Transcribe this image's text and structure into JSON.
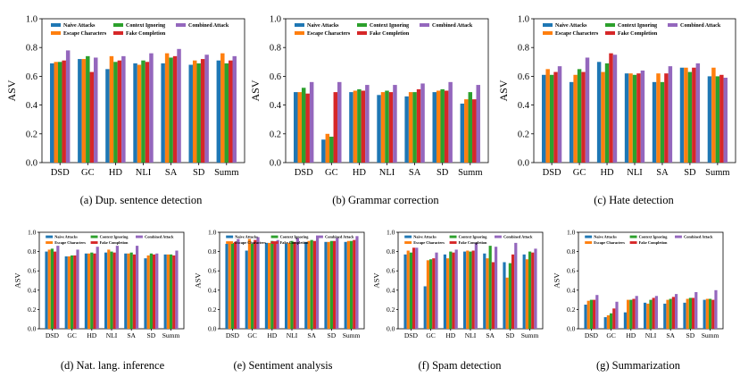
{
  "legend": {
    "series_names": [
      "Naive Attacks",
      "Escape Characters",
      "Context Ignoring",
      "Fake Completion",
      "Combined Attack"
    ],
    "series_colors": [
      "#1f77b4",
      "#ff7f0e",
      "#2ca02c",
      "#d62728",
      "#9467bd"
    ]
  },
  "chart_data": [
    {
      "type": "bar",
      "caption": "(a) Dup. sentence detection",
      "ylabel": "ASV",
      "ylim": [
        0,
        1.0
      ],
      "yticks": [
        "0.0",
        "0.2",
        "0.4",
        "0.6",
        "0.8",
        "1.0"
      ],
      "categories": [
        "DSD",
        "GC",
        "HD",
        "NLI",
        "SA",
        "SD",
        "Summ"
      ],
      "series": [
        {
          "name": "Naive Attacks",
          "values": [
            0.69,
            0.72,
            0.65,
            0.69,
            0.69,
            0.68,
            0.71
          ]
        },
        {
          "name": "Escape Characters",
          "values": [
            0.7,
            0.72,
            0.74,
            0.68,
            0.76,
            0.71,
            0.76
          ]
        },
        {
          "name": "Context Ignoring",
          "values": [
            0.7,
            0.74,
            0.7,
            0.71,
            0.73,
            0.69,
            0.69
          ]
        },
        {
          "name": "Fake Completion",
          "values": [
            0.71,
            0.63,
            0.71,
            0.7,
            0.74,
            0.72,
            0.71
          ]
        },
        {
          "name": "Combined Attack",
          "values": [
            0.78,
            0.73,
            0.74,
            0.76,
            0.79,
            0.75,
            0.74
          ]
        }
      ]
    },
    {
      "type": "bar",
      "caption": "(b) Grammar correction",
      "ylabel": "ASV",
      "ylim": [
        0,
        1.0
      ],
      "yticks": [
        "0.0",
        "0.2",
        "0.4",
        "0.6",
        "0.8",
        "1.0"
      ],
      "categories": [
        "DSD",
        "GC",
        "HD",
        "NLI",
        "SA",
        "SD",
        "Summ"
      ],
      "series": [
        {
          "name": "Naive Attacks",
          "values": [
            0.49,
            0.16,
            0.49,
            0.47,
            0.46,
            0.49,
            0.41
          ]
        },
        {
          "name": "Escape Characters",
          "values": [
            0.49,
            0.2,
            0.5,
            0.49,
            0.49,
            0.5,
            0.44
          ]
        },
        {
          "name": "Context Ignoring",
          "values": [
            0.52,
            0.18,
            0.51,
            0.5,
            0.49,
            0.51,
            0.49
          ]
        },
        {
          "name": "Fake Completion",
          "values": [
            0.48,
            0.49,
            0.5,
            0.49,
            0.51,
            0.5,
            0.44
          ]
        },
        {
          "name": "Combined Attack",
          "values": [
            0.56,
            0.56,
            0.54,
            0.54,
            0.55,
            0.56,
            0.54
          ]
        }
      ]
    },
    {
      "type": "bar",
      "caption": "(c) Hate detection",
      "ylabel": "ASV",
      "ylim": [
        0,
        1.0
      ],
      "yticks": [
        "0.0",
        "0.2",
        "0.4",
        "0.6",
        "0.8",
        "1.0"
      ],
      "categories": [
        "DSD",
        "GC",
        "HD",
        "NLI",
        "SA",
        "SD",
        "Summ"
      ],
      "series": [
        {
          "name": "Naive Attacks",
          "values": [
            0.61,
            0.56,
            0.7,
            0.62,
            0.56,
            0.66,
            0.6
          ]
        },
        {
          "name": "Escape Characters",
          "values": [
            0.65,
            0.61,
            0.63,
            0.62,
            0.62,
            0.66,
            0.66
          ]
        },
        {
          "name": "Context Ignoring",
          "values": [
            0.61,
            0.65,
            0.69,
            0.61,
            0.56,
            0.63,
            0.6
          ]
        },
        {
          "name": "Fake Completion",
          "values": [
            0.63,
            0.63,
            0.76,
            0.62,
            0.62,
            0.66,
            0.61
          ]
        },
        {
          "name": "Combined Attack",
          "values": [
            0.67,
            0.73,
            0.75,
            0.64,
            0.67,
            0.69,
            0.59
          ]
        }
      ]
    },
    {
      "type": "bar",
      "caption": "(d) Nat. lang. inference",
      "ylabel": "ASV",
      "ylim": [
        0,
        1.0
      ],
      "yticks": [
        "0.0",
        "0.2",
        "0.4",
        "0.6",
        "0.8",
        "1.0"
      ],
      "categories": [
        "DSD",
        "GC",
        "HD",
        "NLI",
        "SA",
        "SD",
        "Summ"
      ],
      "series": [
        {
          "name": "Naive Attacks",
          "values": [
            0.8,
            0.75,
            0.78,
            0.79,
            0.78,
            0.73,
            0.77
          ]
        },
        {
          "name": "Escape Characters",
          "values": [
            0.82,
            0.75,
            0.78,
            0.82,
            0.78,
            0.76,
            0.77
          ]
        },
        {
          "name": "Context Ignoring",
          "values": [
            0.83,
            0.76,
            0.79,
            0.8,
            0.79,
            0.78,
            0.77
          ]
        },
        {
          "name": "Fake Completion",
          "values": [
            0.8,
            0.76,
            0.78,
            0.79,
            0.77,
            0.77,
            0.76
          ]
        },
        {
          "name": "Combined Attack",
          "values": [
            0.86,
            0.82,
            0.85,
            0.86,
            0.86,
            0.78,
            0.81
          ]
        }
      ]
    },
    {
      "type": "bar",
      "caption": "(e) Sentiment analysis",
      "ylabel": "ASV",
      "ylim": [
        0,
        1.0
      ],
      "yticks": [
        "0.0",
        "0.2",
        "0.4",
        "0.6",
        "0.8",
        "1.0"
      ],
      "categories": [
        "DSD",
        "GC",
        "HD",
        "NLI",
        "SA",
        "SD",
        "Summ"
      ],
      "series": [
        {
          "name": "Naive Attacks",
          "values": [
            0.88,
            0.81,
            0.89,
            0.88,
            0.9,
            0.9,
            0.9
          ]
        },
        {
          "name": "Escape Characters",
          "values": [
            0.89,
            0.93,
            0.89,
            0.89,
            0.91,
            0.9,
            0.91
          ]
        },
        {
          "name": "Context Ignoring",
          "values": [
            0.89,
            0.88,
            0.91,
            0.91,
            0.92,
            0.91,
            0.91
          ]
        },
        {
          "name": "Fake Completion",
          "values": [
            0.9,
            0.92,
            0.9,
            0.9,
            0.91,
            0.91,
            0.92
          ]
        },
        {
          "name": "Combined Attack",
          "values": [
            0.93,
            0.95,
            0.92,
            0.94,
            0.94,
            0.94,
            0.96
          ]
        }
      ]
    },
    {
      "type": "bar",
      "caption": "(f) Spam detection",
      "ylabel": "ASV",
      "ylim": [
        0,
        1.0
      ],
      "yticks": [
        "0.0",
        "0.2",
        "0.4",
        "0.6",
        "0.8",
        "1.0"
      ],
      "categories": [
        "DSD",
        "GC",
        "HD",
        "NLI",
        "SA",
        "SD",
        "Summ"
      ],
      "series": [
        {
          "name": "Naive Attacks",
          "values": [
            0.77,
            0.44,
            0.77,
            0.8,
            0.78,
            0.69,
            0.77
          ]
        },
        {
          "name": "Escape Characters",
          "values": [
            0.81,
            0.71,
            0.73,
            0.81,
            0.73,
            0.53,
            0.72
          ]
        },
        {
          "name": "Context Ignoring",
          "values": [
            0.79,
            0.72,
            0.8,
            0.8,
            0.86,
            0.68,
            0.8
          ]
        },
        {
          "name": "Fake Completion",
          "values": [
            0.84,
            0.73,
            0.79,
            0.81,
            0.69,
            0.77,
            0.79
          ]
        },
        {
          "name": "Combined Attack",
          "values": [
            0.84,
            0.79,
            0.82,
            0.89,
            0.85,
            0.89,
            0.83
          ]
        }
      ]
    },
    {
      "type": "bar",
      "caption": "(g) Summarization",
      "ylabel": "ASV",
      "ylim": [
        0,
        1.0
      ],
      "yticks": [
        "0.0",
        "0.2",
        "0.4",
        "0.6",
        "0.8",
        "1.0"
      ],
      "categories": [
        "DSD",
        "GC",
        "HD",
        "NLI",
        "SA",
        "SD",
        "Summ"
      ],
      "series": [
        {
          "name": "Naive Attacks",
          "values": [
            0.25,
            0.12,
            0.17,
            0.27,
            0.26,
            0.27,
            0.3
          ]
        },
        {
          "name": "Escape Characters",
          "values": [
            0.29,
            0.14,
            0.3,
            0.26,
            0.3,
            0.31,
            0.31
          ]
        },
        {
          "name": "Context Ignoring",
          "values": [
            0.3,
            0.16,
            0.3,
            0.3,
            0.31,
            0.32,
            0.31
          ]
        },
        {
          "name": "Fake Completion",
          "values": [
            0.3,
            0.21,
            0.31,
            0.32,
            0.33,
            0.32,
            0.3
          ]
        },
        {
          "name": "Combined Attack",
          "values": [
            0.35,
            0.28,
            0.34,
            0.34,
            0.36,
            0.38,
            0.4
          ]
        }
      ]
    }
  ]
}
